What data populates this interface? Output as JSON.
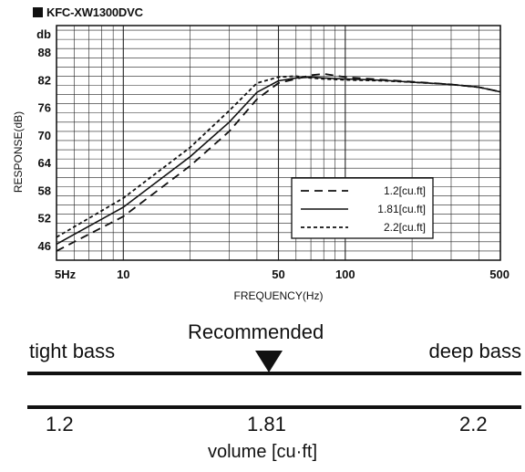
{
  "chart_title": "KFC-XW1300DVC",
  "chart_data": {
    "type": "line",
    "title": "KFC-XW1300DVC",
    "xlabel": "FREQUENCY(Hz)",
    "ylabel": "RESPONSE(dB)",
    "x_scale": "log",
    "xlim": [
      5,
      500
    ],
    "ylim": [
      43,
      94
    ],
    "y_unit_label": "db",
    "x_tick_labels": [
      {
        "value": 5,
        "label": "5Hz"
      },
      {
        "value": 10,
        "label": "10"
      },
      {
        "value": 50,
        "label": "50"
      },
      {
        "value": 100,
        "label": "100"
      },
      {
        "value": 500,
        "label": "500"
      }
    ],
    "y_ticks": [
      46,
      52,
      58,
      64,
      70,
      76,
      82,
      88
    ],
    "grid": true,
    "legend_position": "lower-right",
    "series": [
      {
        "name": "1.2[cu.ft]",
        "style": "dashed",
        "x": [
          5,
          10,
          20,
          30,
          40,
          50,
          60,
          70,
          80,
          100,
          150,
          200,
          300,
          400,
          500
        ],
        "y": [
          45,
          52.5,
          63.5,
          71,
          78,
          81.5,
          82.4,
          83.2,
          83.5,
          82.8,
          82.2,
          81.8,
          81.2,
          80.6,
          79.6
        ]
      },
      {
        "name": "1.81[cu.ft]",
        "style": "solid",
        "x": [
          5,
          10,
          20,
          30,
          40,
          50,
          60,
          70,
          80,
          100,
          150,
          200,
          300,
          400,
          500
        ],
        "y": [
          46.5,
          54.5,
          65.5,
          73,
          79.5,
          82,
          82.6,
          82.8,
          82.6,
          82.4,
          82.1,
          81.7,
          81.2,
          80.6,
          79.6
        ]
      },
      {
        "name": "2.2[cu.ft]",
        "style": "dotted",
        "x": [
          5,
          10,
          20,
          30,
          40,
          50,
          60,
          70,
          80,
          100,
          150,
          200,
          300,
          400,
          500
        ],
        "y": [
          48,
          56.5,
          67.5,
          75.5,
          81.5,
          82.8,
          83,
          82.6,
          82.4,
          82.2,
          82,
          81.7,
          81.2,
          80.6,
          79.6
        ]
      }
    ]
  },
  "slider": {
    "left_label": "tight bass",
    "right_label": "deep bass",
    "marker_label": "Recommended",
    "values": [
      "1.2",
      "1.81",
      "2.2"
    ],
    "recommended_value": "1.81",
    "axis_label": "volume [cu·ft]"
  }
}
